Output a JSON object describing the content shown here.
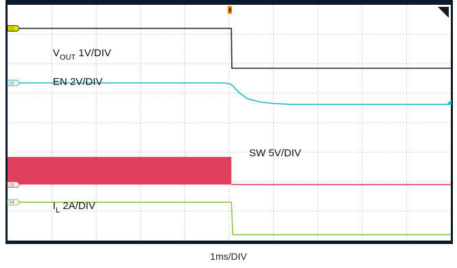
{
  "chart_data": {
    "type": "line",
    "xlabel": "1ms/DIV",
    "grid": true,
    "divisions": {
      "x": 10,
      "y": 8
    },
    "trigger_time_div": 5.0,
    "colors": {
      "background": "#ffffff",
      "frame": "#0b1a2a",
      "grid": "#bcbcbc",
      "vout": "#222222",
      "en": "#1fb7c8",
      "sw": "#e0405c",
      "il": "#8cc63f",
      "trigger": "#e07b00",
      "ch1_marker": "#e6e600"
    },
    "series": [
      {
        "key": "vout",
        "channel": "C1",
        "label_main": "V",
        "label_sub": "OUT",
        "label_rest": " 1V/DIV",
        "x": [
          0,
          5.05,
          5.06,
          5.1,
          10
        ],
        "y": [
          7.2,
          7.2,
          5.85,
          5.85,
          5.85
        ]
      },
      {
        "key": "en",
        "channel": "C2",
        "label_main": "EN 2V/DIV",
        "label_sub": "",
        "label_rest": "",
        "x": [
          0,
          4.9,
          5.05,
          5.2,
          5.4,
          5.7,
          6.0,
          6.4,
          10
        ],
        "y": [
          5.35,
          5.35,
          5.3,
          5.05,
          4.82,
          4.7,
          4.65,
          4.62,
          4.62
        ]
      },
      {
        "key": "sw",
        "channel": "C3",
        "label_main": "SW 5V/DIV",
        "label_sub": "",
        "label_rest": "",
        "band_until": 5.05,
        "band_top": 2.84,
        "band_bottom": 1.9,
        "x": [
          5.05,
          5.1,
          10
        ],
        "y": [
          1.9,
          1.9,
          1.9
        ]
      },
      {
        "key": "il",
        "channel": "C4",
        "label_main": "I",
        "label_sub": "L",
        "label_rest": " 2A/DIV",
        "x": [
          0,
          5.05,
          5.08,
          5.12,
          10
        ],
        "y": [
          1.3,
          1.3,
          0.2,
          0.2,
          0.2
        ]
      }
    ]
  }
}
